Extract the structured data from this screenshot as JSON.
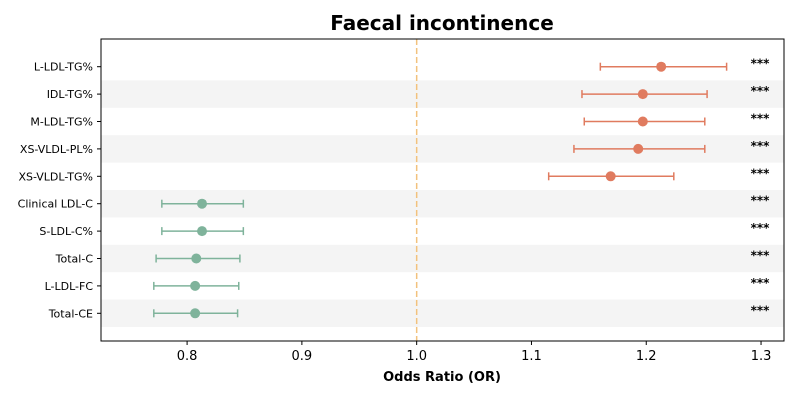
{
  "chart_data": {
    "type": "forest",
    "title": "Faecal incontinence",
    "xlabel": "Odds Ratio (OR)",
    "xlim": [
      0.725,
      1.32
    ],
    "xticks": [
      "0.8",
      "0.9",
      "1.0",
      "1.1",
      "1.2",
      "1.3"
    ],
    "reference_line": 1.0,
    "colors": {
      "risk": "#e07b5f",
      "protective": "#7fb39b",
      "reference": "#f2c27d",
      "band": "#f4f4f4",
      "axis": "#000000"
    },
    "rows": [
      {
        "label": "L-LDL-TG%",
        "or": 1.213,
        "lower": 1.16,
        "upper": 1.27,
        "sig": "***",
        "group": "risk"
      },
      {
        "label": "IDL-TG%",
        "or": 1.197,
        "lower": 1.144,
        "upper": 1.253,
        "sig": "***",
        "group": "risk"
      },
      {
        "label": "M-LDL-TG%",
        "or": 1.197,
        "lower": 1.146,
        "upper": 1.251,
        "sig": "***",
        "group": "risk"
      },
      {
        "label": "XS-VLDL-PL%",
        "or": 1.193,
        "lower": 1.137,
        "upper": 1.251,
        "sig": "***",
        "group": "risk"
      },
      {
        "label": "XS-VLDL-TG%",
        "or": 1.169,
        "lower": 1.115,
        "upper": 1.224,
        "sig": "***",
        "group": "risk"
      },
      {
        "label": "Clinical LDL-C",
        "or": 0.813,
        "lower": 0.778,
        "upper": 0.849,
        "sig": "***",
        "group": "protective"
      },
      {
        "label": "S-LDL-C%",
        "or": 0.813,
        "lower": 0.778,
        "upper": 0.849,
        "sig": "***",
        "group": "protective"
      },
      {
        "label": "Total-C",
        "or": 0.808,
        "lower": 0.773,
        "upper": 0.846,
        "sig": "***",
        "group": "protective"
      },
      {
        "label": "L-LDL-FC",
        "or": 0.807,
        "lower": 0.771,
        "upper": 0.845,
        "sig": "***",
        "group": "protective"
      },
      {
        "label": "Total-CE",
        "or": 0.807,
        "lower": 0.771,
        "upper": 0.844,
        "sig": "***",
        "group": "protective"
      }
    ]
  }
}
